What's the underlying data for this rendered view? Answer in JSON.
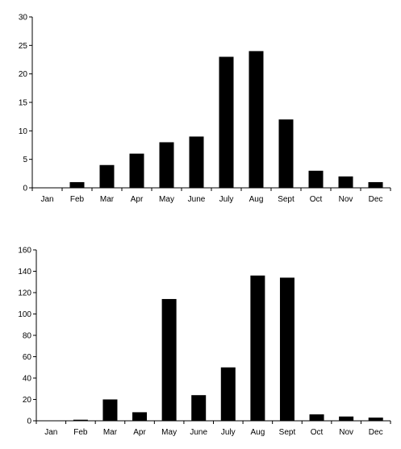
{
  "chart_data": [
    {
      "type": "bar",
      "categories": [
        "Jan",
        "Feb",
        "Mar",
        "Apr",
        "May",
        "June",
        "July",
        "Aug",
        "Sept",
        "Oct",
        "Nov",
        "Dec"
      ],
      "values": [
        0,
        1,
        4,
        6,
        8,
        9,
        23,
        24,
        12,
        3,
        2,
        1
      ],
      "ylim": [
        0,
        30
      ],
      "yticks": [
        0,
        5,
        10,
        15,
        20,
        25,
        30
      ],
      "grid": false,
      "legend": "none"
    },
    {
      "type": "bar",
      "categories": [
        "Jan",
        "Feb",
        "Mar",
        "Apr",
        "May",
        "June",
        "July",
        "Aug",
        "Sept",
        "Oct",
        "Nov",
        "Dec"
      ],
      "values": [
        0,
        1,
        20,
        8,
        114,
        24,
        50,
        136,
        134,
        6,
        4,
        3
      ],
      "ylim": [
        0,
        160
      ],
      "yticks": [
        0,
        20,
        40,
        60,
        80,
        100,
        120,
        140,
        160
      ],
      "grid": false,
      "legend": "none"
    }
  ]
}
